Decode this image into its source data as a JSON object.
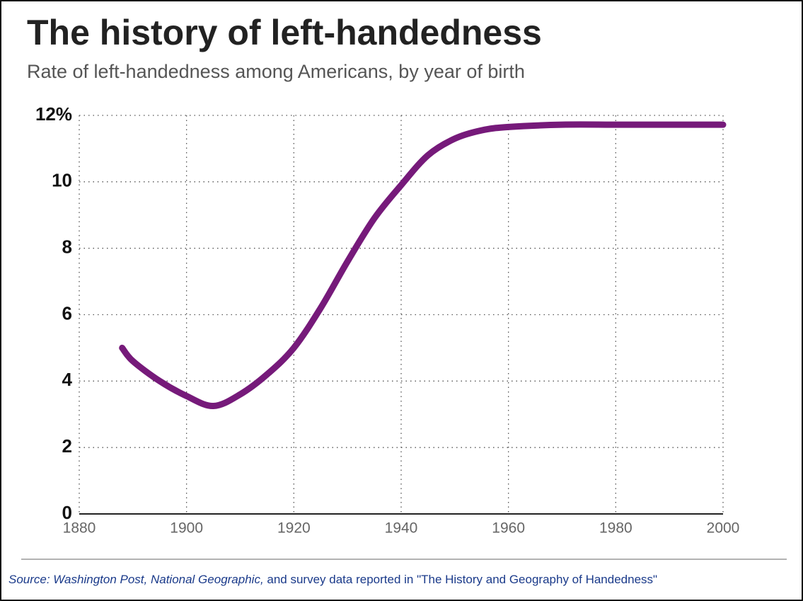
{
  "chart_data": {
    "type": "line",
    "title": "The history of left-handedness",
    "subtitle": "Rate of left-handedness among Americans, by year of birth",
    "source": [
      "Source: Washington Post, National Geographic,",
      " and survey data reported in \"The History and Geography of Handedness\""
    ],
    "x": [
      1888,
      1890,
      1895,
      1900,
      1905,
      1910,
      1915,
      1920,
      1925,
      1930,
      1935,
      1940,
      1945,
      1950,
      1955,
      1960,
      1970,
      1980,
      1990,
      2000
    ],
    "series": [
      {
        "color": "#761a7a",
        "values": [
          5.0,
          4.6,
          4.0,
          3.55,
          3.25,
          3.6,
          4.2,
          5.0,
          6.2,
          7.6,
          8.9,
          9.9,
          10.8,
          11.3,
          11.55,
          11.65,
          11.72,
          11.72,
          11.72,
          11.72
        ]
      }
    ],
    "xlim": [
      1880,
      2000
    ],
    "xticks": [
      1880,
      1900,
      1920,
      1940,
      1960,
      1980,
      2000
    ],
    "ylim": [
      0,
      12
    ],
    "yticks": [
      0,
      2,
      4,
      6,
      8,
      10,
      {
        "value": 12,
        "label": "12%"
      }
    ],
    "grid": true
  }
}
